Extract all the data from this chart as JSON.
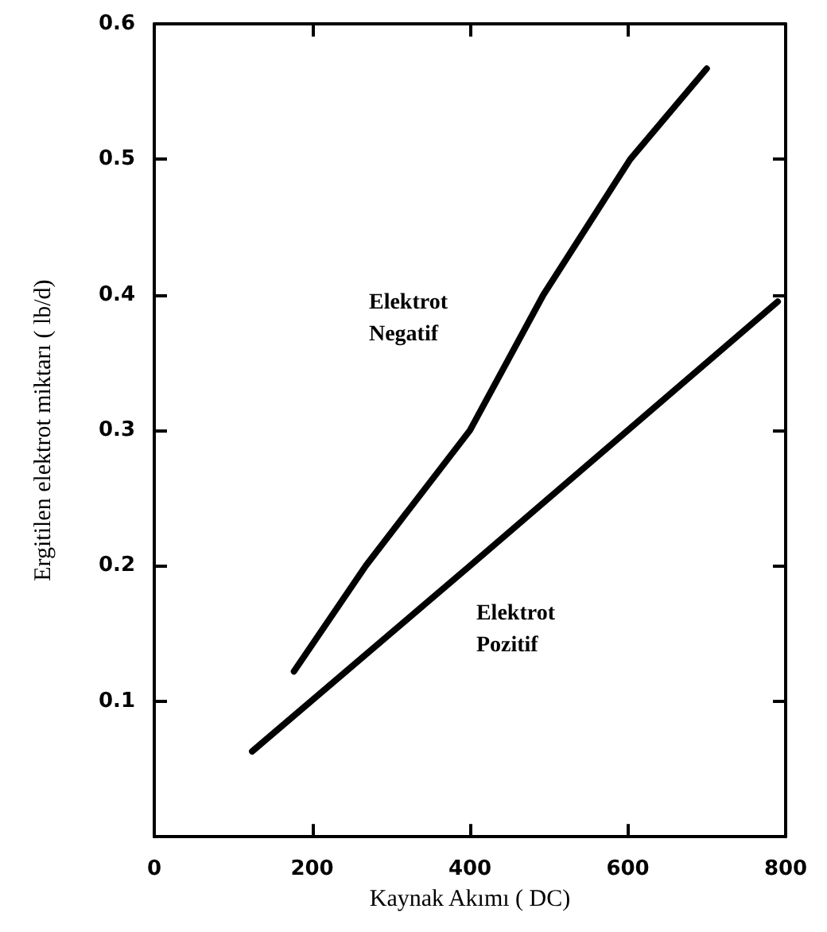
{
  "chart_data": {
    "type": "line",
    "xlabel": "Kaynak Akımı ( DC)",
    "ylabel": "Ergitilen elektrot miktarı ( lb/d)",
    "xlim": [
      0,
      800
    ],
    "xticks": [
      0,
      200,
      400,
      600,
      800
    ],
    "ylim": [
      0,
      0.6
    ],
    "yticks": [
      {
        "value": 0,
        "label": null
      },
      0.1,
      0.2,
      0.3,
      0.4,
      0.5,
      0.6
    ],
    "series": [
      {
        "name": "Elektrot\nNegatif",
        "color": "#000000",
        "x": [
          177,
          268,
          400,
          493,
          603,
          700
        ],
        "values": [
          0.122,
          0.2,
          0.3,
          0.4,
          0.5,
          0.567
        ]
      },
      {
        "name": "Elektrot\nPozitif",
        "color": "#000000",
        "x": [
          124,
          400,
          790
        ],
        "values": [
          0.063,
          0.2,
          0.395
        ]
      }
    ],
    "grid": false,
    "legend": false,
    "marker": "none",
    "line_style": "solid"
  }
}
